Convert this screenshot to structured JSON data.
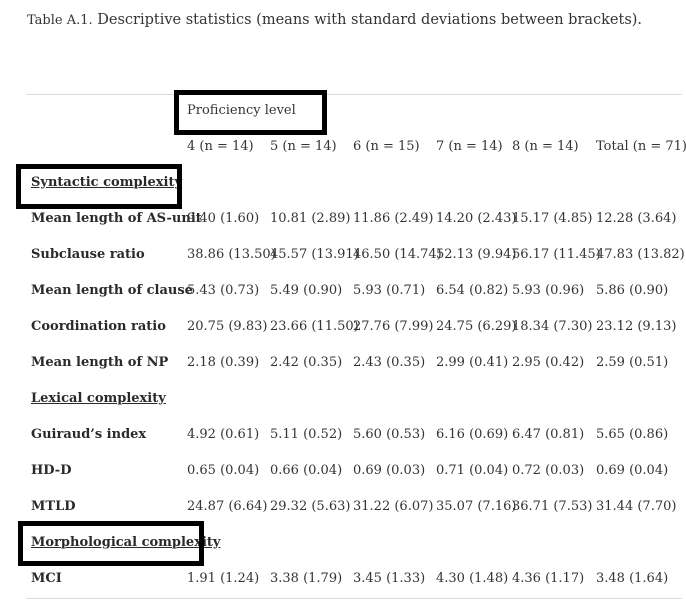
{
  "table": {
    "caption_label": "Table A.1.",
    "caption_text": "Descriptive statistics (means with standard deviations between brackets).",
    "spanner": "Proficiency level",
    "columns": [
      "4 (n = 14)",
      "5 (n = 14)",
      "6 (n = 15)",
      "7 (n = 14)",
      "8 (n = 14)",
      "Total (n = 71)"
    ],
    "sections": [
      {
        "title": "Syntactic complexity",
        "rows": [
          {
            "label": "Mean length of AS-unit",
            "values": [
              "9.40 (1.60)",
              "10.81 (2.89)",
              "11.86 (2.49)",
              "14.20 (2.43)",
              "15.17 (4.85)",
              "12.28 (3.64)"
            ]
          },
          {
            "label": "Subclause ratio",
            "values": [
              "38.86 (13.50)",
              "45.57 (13.91)",
              "46.50 (14.74)",
              "52.13 (9.94)",
              "56.17 (11.45)",
              "47.83 (13.82)"
            ]
          },
          {
            "label": "Mean length of clause",
            "values": [
              "5.43 (0.73)",
              "5.49 (0.90)",
              "5.93 (0.71)",
              "6.54 (0.82)",
              "5.93 (0.96)",
              "5.86 (0.90)"
            ]
          },
          {
            "label": "Coordination ratio",
            "values": [
              "20.75 (9.83)",
              "23.66 (11.50)",
              "27.76 (7.99)",
              "24.75 (6.29)",
              "18.34 (7.30)",
              "23.12 (9.13)"
            ]
          },
          {
            "label": "Mean length of NP",
            "values": [
              "2.18 (0.39)",
              "2.42 (0.35)",
              "2.43 (0.35)",
              "2.99 (0.41)",
              "2.95 (0.42)",
              "2.59 (0.51)"
            ]
          }
        ]
      },
      {
        "title": "Lexical complexity",
        "rows": [
          {
            "label": "Guiraud’s index",
            "values": [
              "4.92 (0.61)",
              "5.11 (0.52)",
              "5.60 (0.53)",
              "6.16 (0.69)",
              "6.47 (0.81)",
              "5.65 (0.86)"
            ]
          },
          {
            "label": "HD-D",
            "values": [
              "0.65 (0.04)",
              "0.66 (0.04)",
              "0.69 (0.03)",
              "0.71 (0.04)",
              "0.72 (0.03)",
              "0.69 (0.04)"
            ]
          },
          {
            "label": "MTLD",
            "values": [
              "24.87 (6.64)",
              "29.32 (5.63)",
              "31.22 (6.07)",
              "35.07 (7.16)",
              "36.71 (7.53)",
              "31.44 (7.70)"
            ]
          }
        ]
      },
      {
        "title": "Morphological complexity",
        "rows": [
          {
            "label": "MCI",
            "values": [
              "1.91 (1.24)",
              "3.38 (1.79)",
              "3.45 (1.33)",
              "4.30 (1.48)",
              "4.36 (1.17)",
              "3.48 (1.64)"
            ]
          }
        ]
      }
    ]
  }
}
